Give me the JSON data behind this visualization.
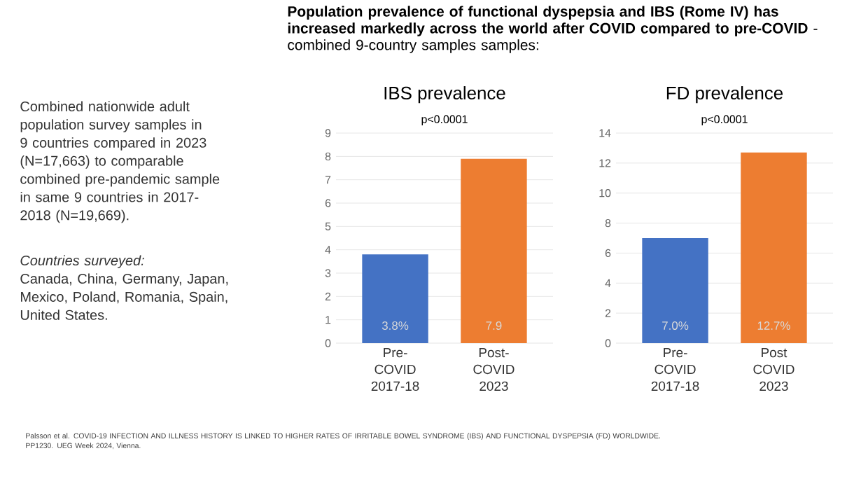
{
  "chart_data": [
    {
      "type": "other",
      "title": "**Population prevalence of functional dyspepsia and IBS (Rome IV) has increased markedly across the world after COVID compared to pre-COVID** - combined 9-country samples samples:",
      "annotations": [
        "Combined nationwide adult population survey samples in 9 countries compared in 2023 (N=17,663) to comparable combined pre-pandemic sample in same 9 countries in 2017-2018 (N=19,669).",
        "Countries surveyed:",
        "Canada, China, Germany, Japan, Mexico, Poland, Romania, Spain, United States.",
        "Palsson et al. COVID-19 INFECTION AND ILLNESS HISTORY IS LINKED TO HIGHER RATES OF IRRITABLE BOWEL SYNDROME (IBS) AND FUNCTIONAL DYSPEPSIA (FD) WORLDWIDE. PP1230. UEG Week 2024, Vienna."
      ]
    },
    {
      "type": "bar",
      "title": "IBS prevalence",
      "subtitle": "p<0.0001",
      "categories": [
        "Pre-COVID 2017-18",
        "Post-COVID 2023"
      ],
      "values": [
        3.8,
        7.9
      ],
      "colors": [
        "#4472c4",
        "#ed7d31"
      ],
      "value_labels": [
        "3.8%",
        "7.9"
      ],
      "ylim": [
        0,
        9
      ],
      "yticks": [
        0,
        1,
        2,
        3,
        4,
        5,
        6,
        7,
        8,
        9
      ],
      "grid": "y"
    },
    {
      "type": "bar",
      "title": "FD prevalence",
      "subtitle": "p<0.0001",
      "categories": [
        "Pre-COVID 2017-18",
        "Post COVID 2023"
      ],
      "values": [
        7.0,
        12.7
      ],
      "colors": [
        "#4472c4",
        "#ed7d31"
      ],
      "value_labels": [
        "7.0%",
        "12.7%"
      ],
      "ylim": [
        0,
        14
      ],
      "yticks": [
        0,
        2,
        4,
        6,
        8,
        10,
        12,
        14
      ],
      "grid": "y"
    }
  ]
}
